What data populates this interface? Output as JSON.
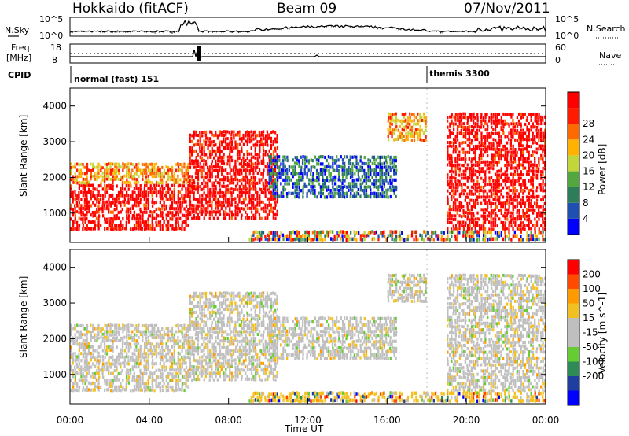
{
  "header": {
    "station": "Hokkaido (fitACF)",
    "beam": "Beam 09",
    "date": "07/Nov/2011"
  },
  "top_panels": {
    "nsky_label": "N.Sky",
    "nsky_ticks": [
      "10^5",
      "10^0"
    ],
    "nsearch_label": "N.Search",
    "nsearch_ticks": [
      "10^5",
      "10^0"
    ],
    "freq_label": "Freq.",
    "freq_unit": "[MHz]",
    "freq_ticks": [
      "18",
      "8"
    ],
    "nave_label": "Nave",
    "nave_ticks": [
      "60",
      "0"
    ],
    "cpid_label": "CPID",
    "cpid_modes": [
      {
        "label": "normal (fast) 151",
        "start_ut": "00:00"
      },
      {
        "label": "themis 3300",
        "start_ut": "18:00"
      }
    ]
  },
  "colors": {
    "power_scale": [
      "#0000ff",
      "#1f4fb0",
      "#2e7d5a",
      "#52a83f",
      "#c2d63a",
      "#ffb200",
      "#ff6a00",
      "#ff1a00",
      "#ff0000"
    ],
    "velocity_scale": [
      "#ff0000",
      "#ff4a00",
      "#ff9a00",
      "#f2c020",
      "#bfbfbf",
      "#bfbfbf",
      "#66cc33",
      "#2e8b57",
      "#1f3fa0",
      "#0000ff"
    ],
    "ground_scatter": "#bfbfbf"
  },
  "chart_data": [
    {
      "type": "heatmap",
      "quantity": "Power",
      "xlabel": "Time UT",
      "ylabel": "Slant Range [km]",
      "colorbar_label": "Power [dB]",
      "colorbar_ticks": [
        "4",
        "8",
        "12",
        "16",
        "20",
        "24",
        "28"
      ],
      "x_range_hours": [
        0,
        24
      ],
      "y_range_km": [
        180,
        4500
      ],
      "y_ticks": [
        "1000",
        "2000",
        "3000",
        "4000"
      ],
      "echo_regions": [
        {
          "t0": 0,
          "t1": 6,
          "r0": 500,
          "r1": 1800,
          "level": "high"
        },
        {
          "t0": 0,
          "t1": 6,
          "r0": 1800,
          "r1": 2400,
          "level": "medium"
        },
        {
          "t0": 6,
          "t1": 10.5,
          "r0": 800,
          "r1": 3300,
          "level": "high"
        },
        {
          "t0": 10,
          "t1": 16.5,
          "r0": 1400,
          "r1": 2600,
          "level": "low"
        },
        {
          "t0": 16,
          "t1": 18,
          "r0": 3000,
          "r1": 3800,
          "level": "medium"
        },
        {
          "t0": 19,
          "t1": 24,
          "r0": 500,
          "r1": 3800,
          "level": "high"
        },
        {
          "t0": 9,
          "t1": 24,
          "r0": 200,
          "r1": 500,
          "level": "mixed"
        }
      ]
    },
    {
      "type": "heatmap",
      "quantity": "Velocity",
      "xlabel": "Time UT",
      "ylabel": "Slant Range [km]",
      "colorbar_label": "Velocity [m s^-1]",
      "colorbar_ticks": [
        "200",
        "100",
        "50",
        "15",
        "-15",
        "-50",
        "-100",
        "-200"
      ],
      "x_range_hours": [
        0,
        24
      ],
      "y_range_km": [
        180,
        4500
      ],
      "y_ticks": [
        "1000",
        "2000",
        "3000",
        "4000"
      ],
      "x_ticks": [
        "00:00",
        "04:00",
        "08:00",
        "12:00",
        "16:00",
        "20:00",
        "00:00"
      ]
    }
  ],
  "figure": {
    "xlabel": "Time UT",
    "x_ticks": [
      "00:00",
      "04:00",
      "08:00",
      "12:00",
      "16:00",
      "20:00",
      "00:00"
    ]
  }
}
